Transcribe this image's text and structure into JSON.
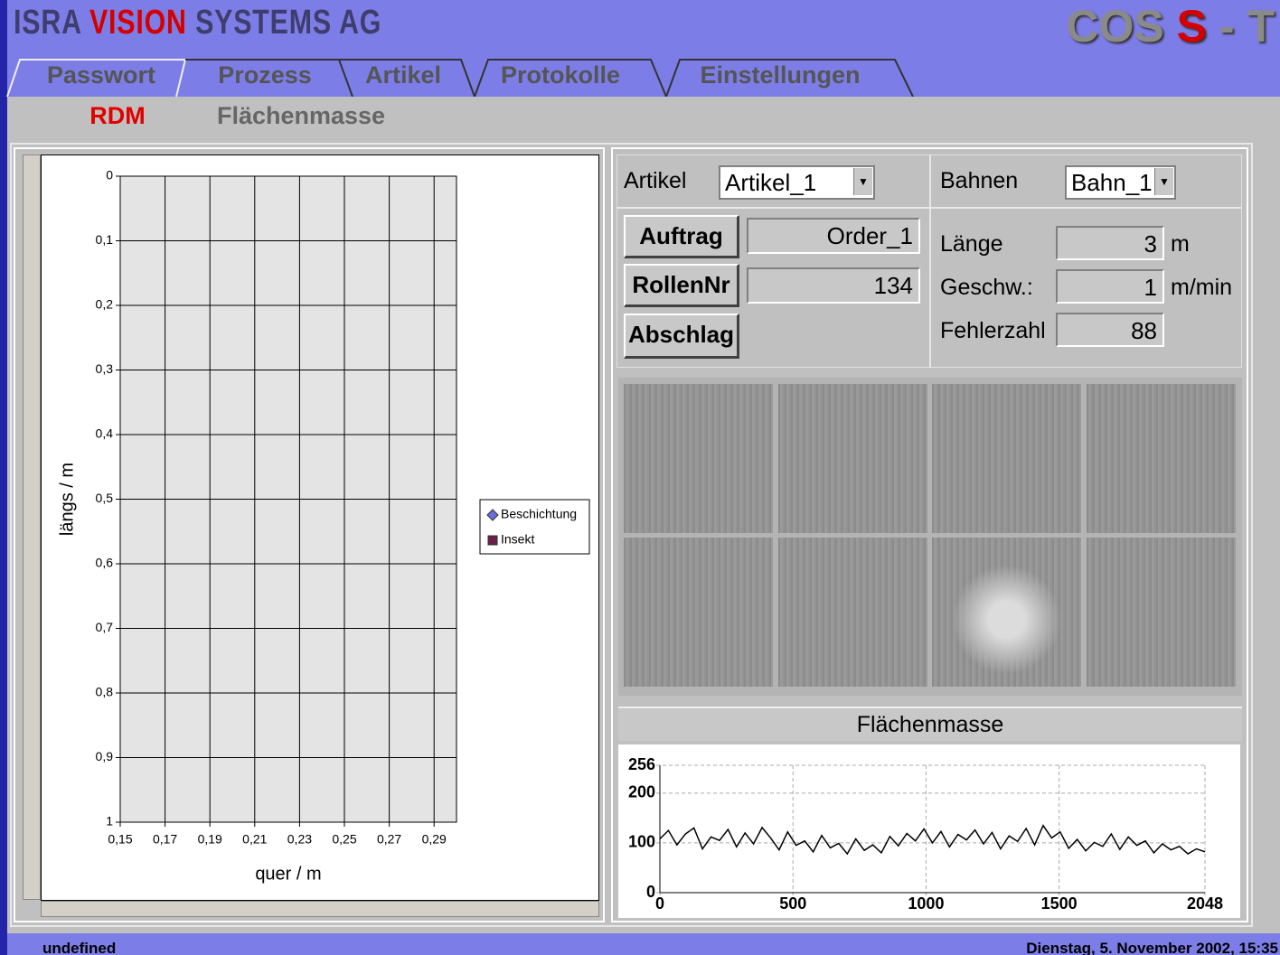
{
  "header": {
    "brand": [
      "ISRA",
      "VISION",
      "SYSTEMS AG"
    ],
    "logo": [
      "COS",
      "S",
      "-",
      "T"
    ]
  },
  "tabs": [
    "Passwort",
    "Prozess",
    "Artikel",
    "Protokolle",
    "Einstellungen"
  ],
  "subtabs": [
    "RDM",
    "Flächenmasse"
  ],
  "panel": {
    "artikel_label": "Artikel",
    "artikel_value": "Artikel_1",
    "bahnen_label": "Bahnen",
    "bahnen_value": "Bahn_1",
    "buttons": [
      "Auftrag",
      "RollenNr",
      "Abschlag"
    ],
    "auftrag_value": "Order_1",
    "rollennr_value": 134,
    "laenge_label": "Länge",
    "laenge_value": 3,
    "laenge_unit": "m",
    "geschw_label": "Geschw.:",
    "geschw_value": 1,
    "geschw_unit": "m/min",
    "fehlerzahl_label": "Fehlerzahl",
    "fehlerzahl_value": 88
  },
  "status": {
    "left": "undefined",
    "right": "Dienstag, 5. November 2002, 15:35"
  },
  "chart_data": [
    {
      "type": "scatter",
      "x_label": "quer / m",
      "y_label": "längs / m",
      "xlim": [
        0.15,
        0.3
      ],
      "ylim": [
        0,
        1
      ],
      "y_inverted": true,
      "grid": true,
      "legend": "right",
      "xticks": [
        {
          "value": 0.15,
          "label": "0,15"
        },
        {
          "value": 0.17,
          "label": "0,17"
        },
        {
          "value": 0.19,
          "label": "0,19"
        },
        {
          "value": 0.21,
          "label": "0,21"
        },
        {
          "value": 0.23,
          "label": "0,23"
        },
        {
          "value": 0.25,
          "label": "0,25"
        },
        {
          "value": 0.27,
          "label": "0,27"
        },
        {
          "value": 0.29,
          "label": "0,29"
        }
      ],
      "yticks": [
        0,
        {
          "value": 0.1,
          "label": "0,1"
        },
        {
          "value": 0.2,
          "label": "0,2"
        },
        {
          "value": 0.3,
          "label": "0,3"
        },
        {
          "value": 0.4,
          "label": "0,4"
        },
        {
          "value": 0.5,
          "label": "0,5"
        },
        {
          "value": 0.6,
          "label": "0,6"
        },
        {
          "value": 0.7,
          "label": "0,7"
        },
        {
          "value": 0.8,
          "label": "0,8"
        },
        {
          "value": 0.9,
          "label": "0,9"
        },
        1
      ],
      "series": [
        {
          "name": "Beschichtung",
          "color": "#6b6bde",
          "marker": "diamond",
          "x": [],
          "values": []
        },
        {
          "name": "Insekt",
          "color": "#6e1e4a",
          "marker": "square",
          "x": [],
          "values": []
        }
      ]
    },
    {
      "type": "line",
      "title": "Flächenmasse",
      "xlim": [
        0,
        2048
      ],
      "ylim": [
        0,
        256
      ],
      "grid": true,
      "xticks": [
        0,
        500,
        1000,
        1500,
        2048
      ],
      "yticks": [
        0,
        100,
        200,
        256
      ],
      "x": [
        0,
        32,
        64,
        96,
        128,
        160,
        192,
        224,
        256,
        288,
        320,
        352,
        384,
        416,
        448,
        480,
        512,
        544,
        576,
        608,
        640,
        672,
        704,
        736,
        768,
        800,
        832,
        864,
        896,
        928,
        960,
        992,
        1024,
        1056,
        1088,
        1120,
        1152,
        1184,
        1216,
        1248,
        1280,
        1312,
        1344,
        1376,
        1408,
        1440,
        1472,
        1504,
        1536,
        1568,
        1600,
        1632,
        1664,
        1696,
        1728,
        1760,
        1792,
        1824,
        1856,
        1888,
        1920,
        1952,
        1984,
        2016,
        2048
      ],
      "series": [
        {
          "color": "#000000",
          "values": [
            108,
            125,
            96,
            118,
            130,
            88,
            112,
            105,
            127,
            92,
            120,
            98,
            131,
            110,
            86,
            122,
            95,
            104,
            82,
            115,
            90,
            99,
            78,
            108,
            85,
            96,
            80,
            113,
            94,
            119,
            104,
            128,
            100,
            123,
            92,
            117,
            106,
            126,
            98,
            121,
            88,
            114,
            103,
            129,
            96,
            135,
            110,
            122,
            89,
            107,
            84,
            101,
            93,
            118,
            87,
            112,
            95,
            104,
            80,
            98,
            86,
            93,
            78,
            88,
            82
          ]
        }
      ]
    }
  ]
}
